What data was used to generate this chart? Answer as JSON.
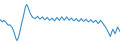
{
  "line_color": "#3a8fc9",
  "background_color": "#ffffff",
  "linewidth": 0.8,
  "ylim": [
    -4.0,
    4.0
  ],
  "values": [
    0.5,
    0.3,
    0.1,
    0.4,
    0.2,
    0.0,
    -0.3,
    -0.5,
    -0.4,
    -0.6,
    -0.9,
    -1.4,
    -2.0,
    -2.8,
    -3.2,
    -2.8,
    -2.0,
    -1.0,
    0.0,
    0.8,
    1.8,
    2.8,
    3.2,
    2.8,
    2.2,
    1.6,
    1.2,
    0.9,
    0.8,
    0.7,
    0.9,
    1.1,
    0.8,
    0.6,
    0.8,
    1.0,
    0.7,
    0.5,
    0.7,
    0.9,
    0.6,
    0.4,
    0.6,
    0.8,
    0.5,
    0.3,
    0.6,
    0.9,
    0.6,
    0.4,
    0.7,
    1.0,
    0.7,
    0.4,
    0.7,
    1.0,
    0.7,
    0.4,
    0.6,
    0.8,
    0.5,
    0.3,
    0.5,
    0.7,
    0.4,
    0.2,
    0.4,
    0.7,
    0.4,
    0.2,
    0.4,
    0.6,
    0.3,
    0.1,
    0.3,
    0.5,
    0.2,
    0.0,
    0.2,
    0.4,
    0.1,
    -0.2,
    0.1,
    0.4,
    0.1,
    -0.2,
    -0.5,
    -0.8,
    -1.2,
    -1.6,
    -2.0,
    -2.5,
    -1.8,
    -1.2,
    -1.6,
    -2.0,
    -1.4,
    -0.8,
    -1.2,
    -1.6
  ]
}
